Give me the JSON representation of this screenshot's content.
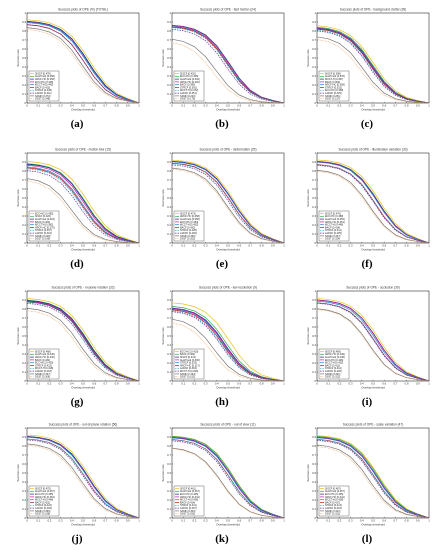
{
  "figure": {
    "panels": [
      {
        "id": "a",
        "caption": "(a)",
        "title": "Success plots of OPE (%) (TOTAL)",
        "xlabel": "Overlap threshold",
        "ylabel": "Success rate",
        "legend": [
          "SiSCF [0.478]",
          "AutoTrack [0.458]",
          "ARCF-HC [0.456]",
          "ECO-HC [0.445]",
          "MCCT-H [0.442]",
          "BACF [0.413]",
          "STRCF [0.438]",
          "LADCF [0.411]",
          "SAMF [0.372]",
          "DSST [0.348]"
        ]
      },
      {
        "id": "b",
        "caption": "(b)",
        "title": "Success plots of OPE - fast motion (24)",
        "xlabel": "Overlap threshold",
        "ylabel": "Success rate",
        "legend": [
          "SiSCF [0.402]",
          "ECO-HC [0.405]",
          "AutoTrack [0.402]",
          "ARCF-HC [0.400]",
          "BACF [0.390]",
          "STRCF [0.381]",
          "MCCT-H [0.372]",
          "LADCF [0.351]",
          "SAMF [0.220]",
          "DSST [0.176]"
        ]
      },
      {
        "id": "c",
        "caption": "(c)",
        "title": "Success plots of OPE - background clutter (39)",
        "xlabel": "Overlap threshold",
        "ylabel": "Success rate",
        "legend": [
          "SiSCF [0.398]",
          "AutoTrack [0.378]",
          "MCCT-H [0.367]",
          "BACF [0.362]",
          "ARCF-HC [0.358]",
          "STRCF [0.352]",
          "ECO-HC [0.338]",
          "LADCF [0.329]",
          "SAMF [0.251]",
          "DSST [0.217]"
        ]
      },
      {
        "id": "d",
        "caption": "(d)",
        "title": "Success plots of OPE - motion blur (15)",
        "xlabel": "Overlap threshold",
        "ylabel": "Success rate",
        "legend": [
          "ECO-HC [0.455]",
          "SiSCF [0.426]",
          "AutoTrack [0.418]",
          "BACF [0.404]",
          "MCCT-H [0.382]",
          "ARCF-HC [0.370]",
          "STRCF [0.357]",
          "LADCF [0.333]",
          "SAMF [0.228]",
          "DSST [0.199]"
        ]
      },
      {
        "id": "e",
        "caption": "(e)",
        "title": "Success plots of OPE - deformation (25)",
        "xlabel": "Overlap threshold",
        "ylabel": "Success rate",
        "legend": [
          "SiSCF [0.473]",
          "ARCF-HC [0.458]",
          "AutoTrack [0.458]",
          "ECO-HC [0.454]",
          "MCCT-H [0.452]",
          "BACF [0.432]",
          "STRCF [0.425]",
          "LADCF [0.409]",
          "SAMF [0.366]",
          "DSST [0.352]"
        ]
      },
      {
        "id": "f",
        "caption": "(f)",
        "title": "Success plots of OPE - illumination variation (33)",
        "xlabel": "Overlap threshold",
        "ylabel": "Success rate",
        "legend": [
          "SiSCF [0.476]",
          "ECO-HC [0.458]",
          "AutoTrack [0.454]",
          "ARCF-HC [0.451]",
          "MCCT-H [0.446]",
          "BACF [0.414]",
          "STRCF [0.411]",
          "LADCF [0.405]",
          "SAMF [0.337]",
          "DSST [0.324]"
        ]
      },
      {
        "id": "g",
        "caption": "(g)",
        "title": "Success plots of OPE - in-plane rotation (32)",
        "xlabel": "Overlap threshold",
        "ylabel": "Success rate",
        "legend": [
          "SiSCF [0.468]",
          "AutoTrack [0.446]",
          "ARCF-HC [0.440]",
          "BACF [0.432]",
          "ECO-HC [0.425]",
          "STRCF [0.422]",
          "MCCT-H [0.418]",
          "LADCF [0.403]",
          "SAMF [0.337]",
          "DSST [0.306]"
        ]
      },
      {
        "id": "h",
        "caption": "(h)",
        "title": "Success plots of OPE - low resolution (9)",
        "xlabel": "Overlap threshold",
        "ylabel": "Success rate",
        "legend": [
          "ECO-HC [0.410]",
          "BACF [0.362]",
          "SiSCF [0.341]",
          "AutoTrack [0.336]",
          "STRCF [0.329]",
          "ARCF-HC [0.317]",
          "LADCF [0.304]",
          "MCCT-H [0.293]",
          "SAMF [0.194]",
          "DSST [0.152]"
        ]
      },
      {
        "id": "i",
        "caption": "(i)",
        "title": "Success plots of OPE - occlusion (30)",
        "xlabel": "Overlap threshold",
        "ylabel": "Success rate",
        "legend": [
          "SiSCF [0.469]",
          "ARCF-HC [0.449]",
          "AutoTrack [0.448]",
          "ECO-HC [0.446]",
          "MCCT-H [0.432]",
          "BACF [0.411]",
          "STRCF [0.411]",
          "LADCF [0.405]",
          "SAMF [0.331]",
          "DSST [0.322]"
        ]
      },
      {
        "id": "j",
        "caption": "(j)",
        "title": "Success plots of OPE - out-of-plane rotation (56)",
        "xlabel": "Overlap threshold",
        "ylabel": "Success rate",
        "legend": [
          "SiSCF [0.475]",
          "AutoTrack [0.457]",
          "ECO-HC [0.455]",
          "ARCF-HC [0.451]",
          "MCCT-H [0.446]",
          "BACF [0.422]",
          "STRCF [0.422]",
          "LADCF [0.409]",
          "SAMF [0.356]",
          "DSST [0.338]"
        ]
      },
      {
        "id": "k",
        "caption": "(k)",
        "title": "Success plots of OPE - out of view (11)",
        "xlabel": "Overlap threshold",
        "ylabel": "Success rate",
        "legend": [
          "SiSCF [0.461]",
          "AutoTrack [0.457]",
          "ECO-HC [0.445]",
          "ARCF-HC [0.441]",
          "MCCT-H [0.436]",
          "BACF [0.414]",
          "STRCF [0.411]",
          "LADCF [0.397]",
          "SAMF [0.300]",
          "DSST [0.292]"
        ]
      },
      {
        "id": "l",
        "caption": "(l)",
        "title": "Success plots of OPE - scale variation (47)",
        "xlabel": "Overlap threshold",
        "ylabel": "Success rate",
        "legend": [
          "SiSCF [0.467]",
          "AutoTrack [0.457]",
          "ECO-HC [0.445]",
          "ARCF-HC [0.441]",
          "MCCT-H [0.438]",
          "BACF [0.417]",
          "STRCF [0.413]",
          "LADCF [0.403]",
          "SAMF [0.341]",
          "DSST [0.321]"
        ]
      }
    ]
  },
  "chart_data": {
    "type": "line",
    "x": [
      0,
      0.1,
      0.2,
      0.3,
      0.4,
      0.5,
      0.6,
      0.7,
      0.8,
      0.9,
      1.0
    ],
    "xlim": [
      0,
      1
    ],
    "ylim": [
      0,
      1
    ],
    "xticks": [
      "0",
      "0.1",
      "0.2",
      "0.3",
      "0.4",
      "0.5",
      "0.6",
      "0.7",
      "0.8",
      "0.9",
      "1"
    ],
    "yticks": [
      "0",
      "0.1",
      "0.2",
      "0.3",
      "0.4",
      "0.5",
      "0.6",
      "0.7",
      "0.8",
      "0.9",
      "1"
    ],
    "grid": false,
    "legend_position": "bottom-left",
    "series_styles": [
      {
        "color": "#e8c21a",
        "dash": ""
      },
      {
        "color": "#2fa84f",
        "dash": ""
      },
      {
        "color": "#1f1f8f",
        "dash": ""
      },
      {
        "color": "#c8189a",
        "dash": ""
      },
      {
        "color": "#2e7bd6",
        "dash": ""
      },
      {
        "color": "#b01717",
        "dash": ""
      },
      {
        "color": "#2bb3c9",
        "dash": "1.5,1"
      },
      {
        "color": "#6a2ea0",
        "dash": "1.5,1"
      },
      {
        "color": "#777777",
        "dash": ""
      },
      {
        "color": "#e89a4a",
        "dash": "0.6,0.8"
      }
    ]
  }
}
